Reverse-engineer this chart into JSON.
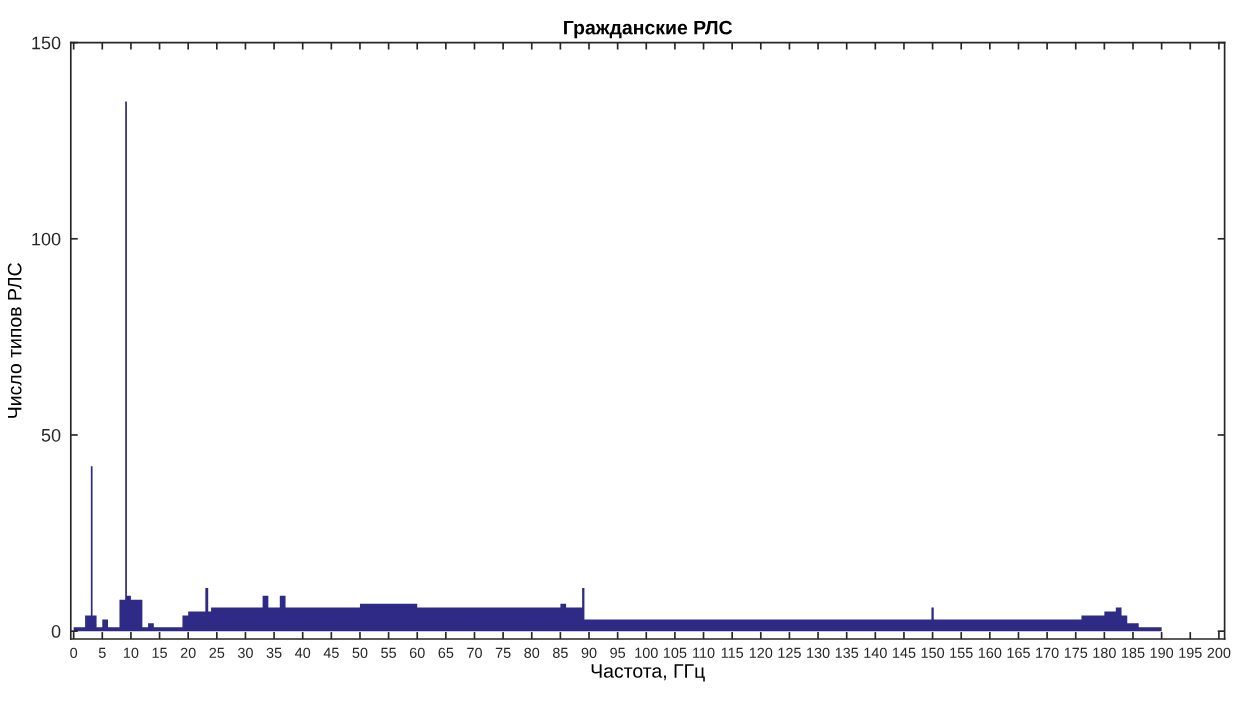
{
  "chart_data": {
    "type": "histogram",
    "title": "Гражданские РЛС",
    "xlabel": "Частота, ГГц",
    "ylabel": "Число типов РЛС",
    "bins": [
      0,
      1,
      2,
      3,
      3.3,
      4,
      5,
      6,
      7,
      8,
      9,
      9.3,
      10,
      11,
      12,
      13,
      14,
      19,
      20,
      23,
      23.5,
      24,
      33,
      34,
      36,
      37,
      50,
      60,
      85,
      86,
      88.8,
      89.2,
      149.8,
      150.2,
      176,
      180,
      182,
      183,
      184,
      186,
      190,
      200
    ],
    "values": [
      1,
      1,
      4,
      42,
      4,
      1,
      3,
      1,
      1,
      8,
      135,
      9,
      8,
      8,
      1,
      2,
      1,
      4,
      5,
      11,
      5,
      6,
      9,
      6,
      9,
      6,
      7,
      6,
      7,
      6,
      11,
      3,
      6,
      3,
      4,
      5,
      6,
      4,
      2,
      1,
      0
    ],
    "color": "#2e2a85",
    "xlim": [
      -0.5,
      201
    ],
    "ylim": [
      -2,
      150
    ],
    "xticks": [
      0,
      5,
      10,
      15,
      20,
      25,
      30,
      35,
      40,
      45,
      50,
      55,
      60,
      65,
      70,
      75,
      80,
      85,
      90,
      95,
      100,
      105,
      110,
      115,
      120,
      125,
      130,
      135,
      140,
      145,
      150,
      155,
      160,
      165,
      170,
      175,
      180,
      185,
      190,
      195,
      200
    ],
    "yticks": [
      0,
      50,
      100,
      150
    ],
    "grid": false
  }
}
